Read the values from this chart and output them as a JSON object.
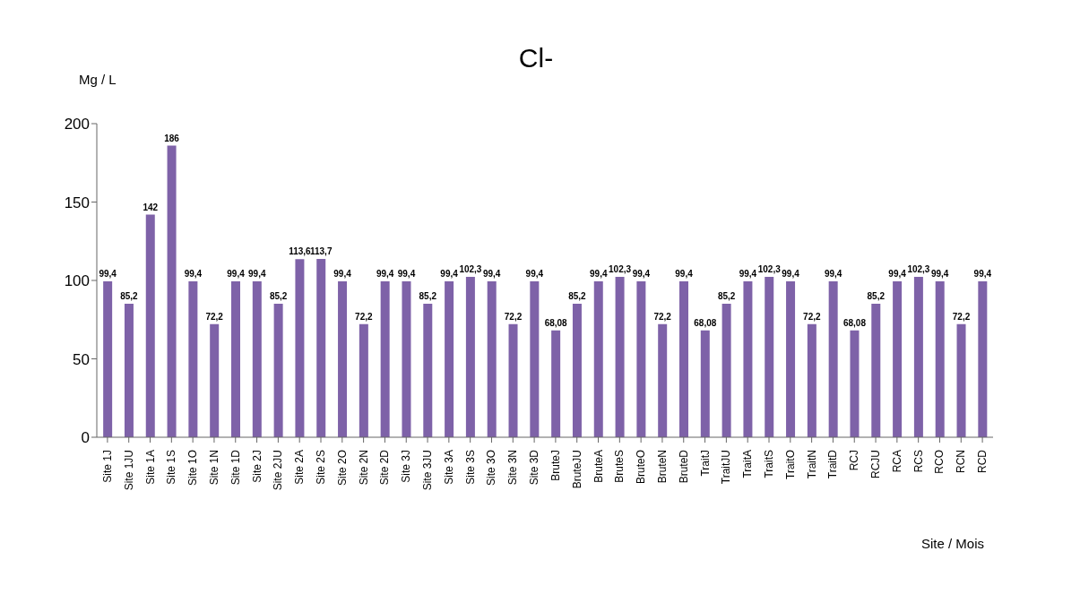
{
  "chart_data": {
    "type": "bar",
    "title": "Cl-",
    "ylabel": "Mg / L",
    "xlabel": "Site / Mois",
    "categories": [
      "Site 1J",
      "Site 1JU",
      "Site 1A",
      "Site 1S",
      "Site 1O",
      "Site 1N",
      "Site 1D",
      "Site 2J",
      "Site 2JU",
      "Site 2A",
      "Site 2S",
      "Site 2O",
      "Site 2N",
      "Site 2D",
      "Site 3J",
      "Site 3JU",
      "Site 3A",
      "Site 3S",
      "Site 3O",
      "Site 3N",
      "Site 3D",
      "BruteJ",
      "BruteJU",
      "BruteA",
      "BruteS",
      "BruteO",
      "BruteN",
      "BruteD",
      "TraitJ",
      "TraitJU",
      "TraitA",
      "TraitS",
      "TraitO",
      "TraitN",
      "TraitD",
      "RCJ",
      "RCJU",
      "RCA",
      "RCS",
      "RCO",
      "RCN",
      "RCD"
    ],
    "values": [
      99.4,
      85.2,
      142,
      186,
      99.4,
      72.2,
      99.4,
      99.4,
      85.2,
      113.6,
      113.7,
      99.4,
      72.2,
      99.4,
      99.4,
      85.2,
      99.4,
      102.3,
      99.4,
      72.2,
      99.4,
      68.08,
      85.2,
      99.4,
      102.3,
      99.4,
      72.2,
      99.4,
      68.08,
      85.2,
      99.4,
      102.3,
      99.4,
      72.2,
      99.4,
      68.08,
      85.2,
      99.4,
      102.3,
      99.4,
      72.2,
      99.4
    ],
    "value_labels": [
      "99,4",
      "85,2",
      "142",
      "186",
      "99,4",
      "72,2",
      "99,4",
      "99,4",
      "85,2",
      "113,6",
      "113,7",
      "99,4",
      "72,2",
      "99,4",
      "99,4",
      "85,2",
      "99,4",
      "102,3",
      "99,4",
      "72,2",
      "99,4",
      "68,08",
      "85,2",
      "99,4",
      "102,3",
      "99,4",
      "72,2",
      "99,4",
      "68,08",
      "85,2",
      "99,4",
      "102,3",
      "99,4",
      "72,2",
      "99,4",
      "68,08",
      "85,2",
      "99,4",
      "102,3",
      "99,4",
      "72,2",
      "99,4"
    ],
    "color": "#7e62a8",
    "ylim": [
      0,
      200
    ],
    "yticks": [
      0,
      50,
      100,
      150,
      200
    ],
    "grid": false,
    "legend": false
  }
}
